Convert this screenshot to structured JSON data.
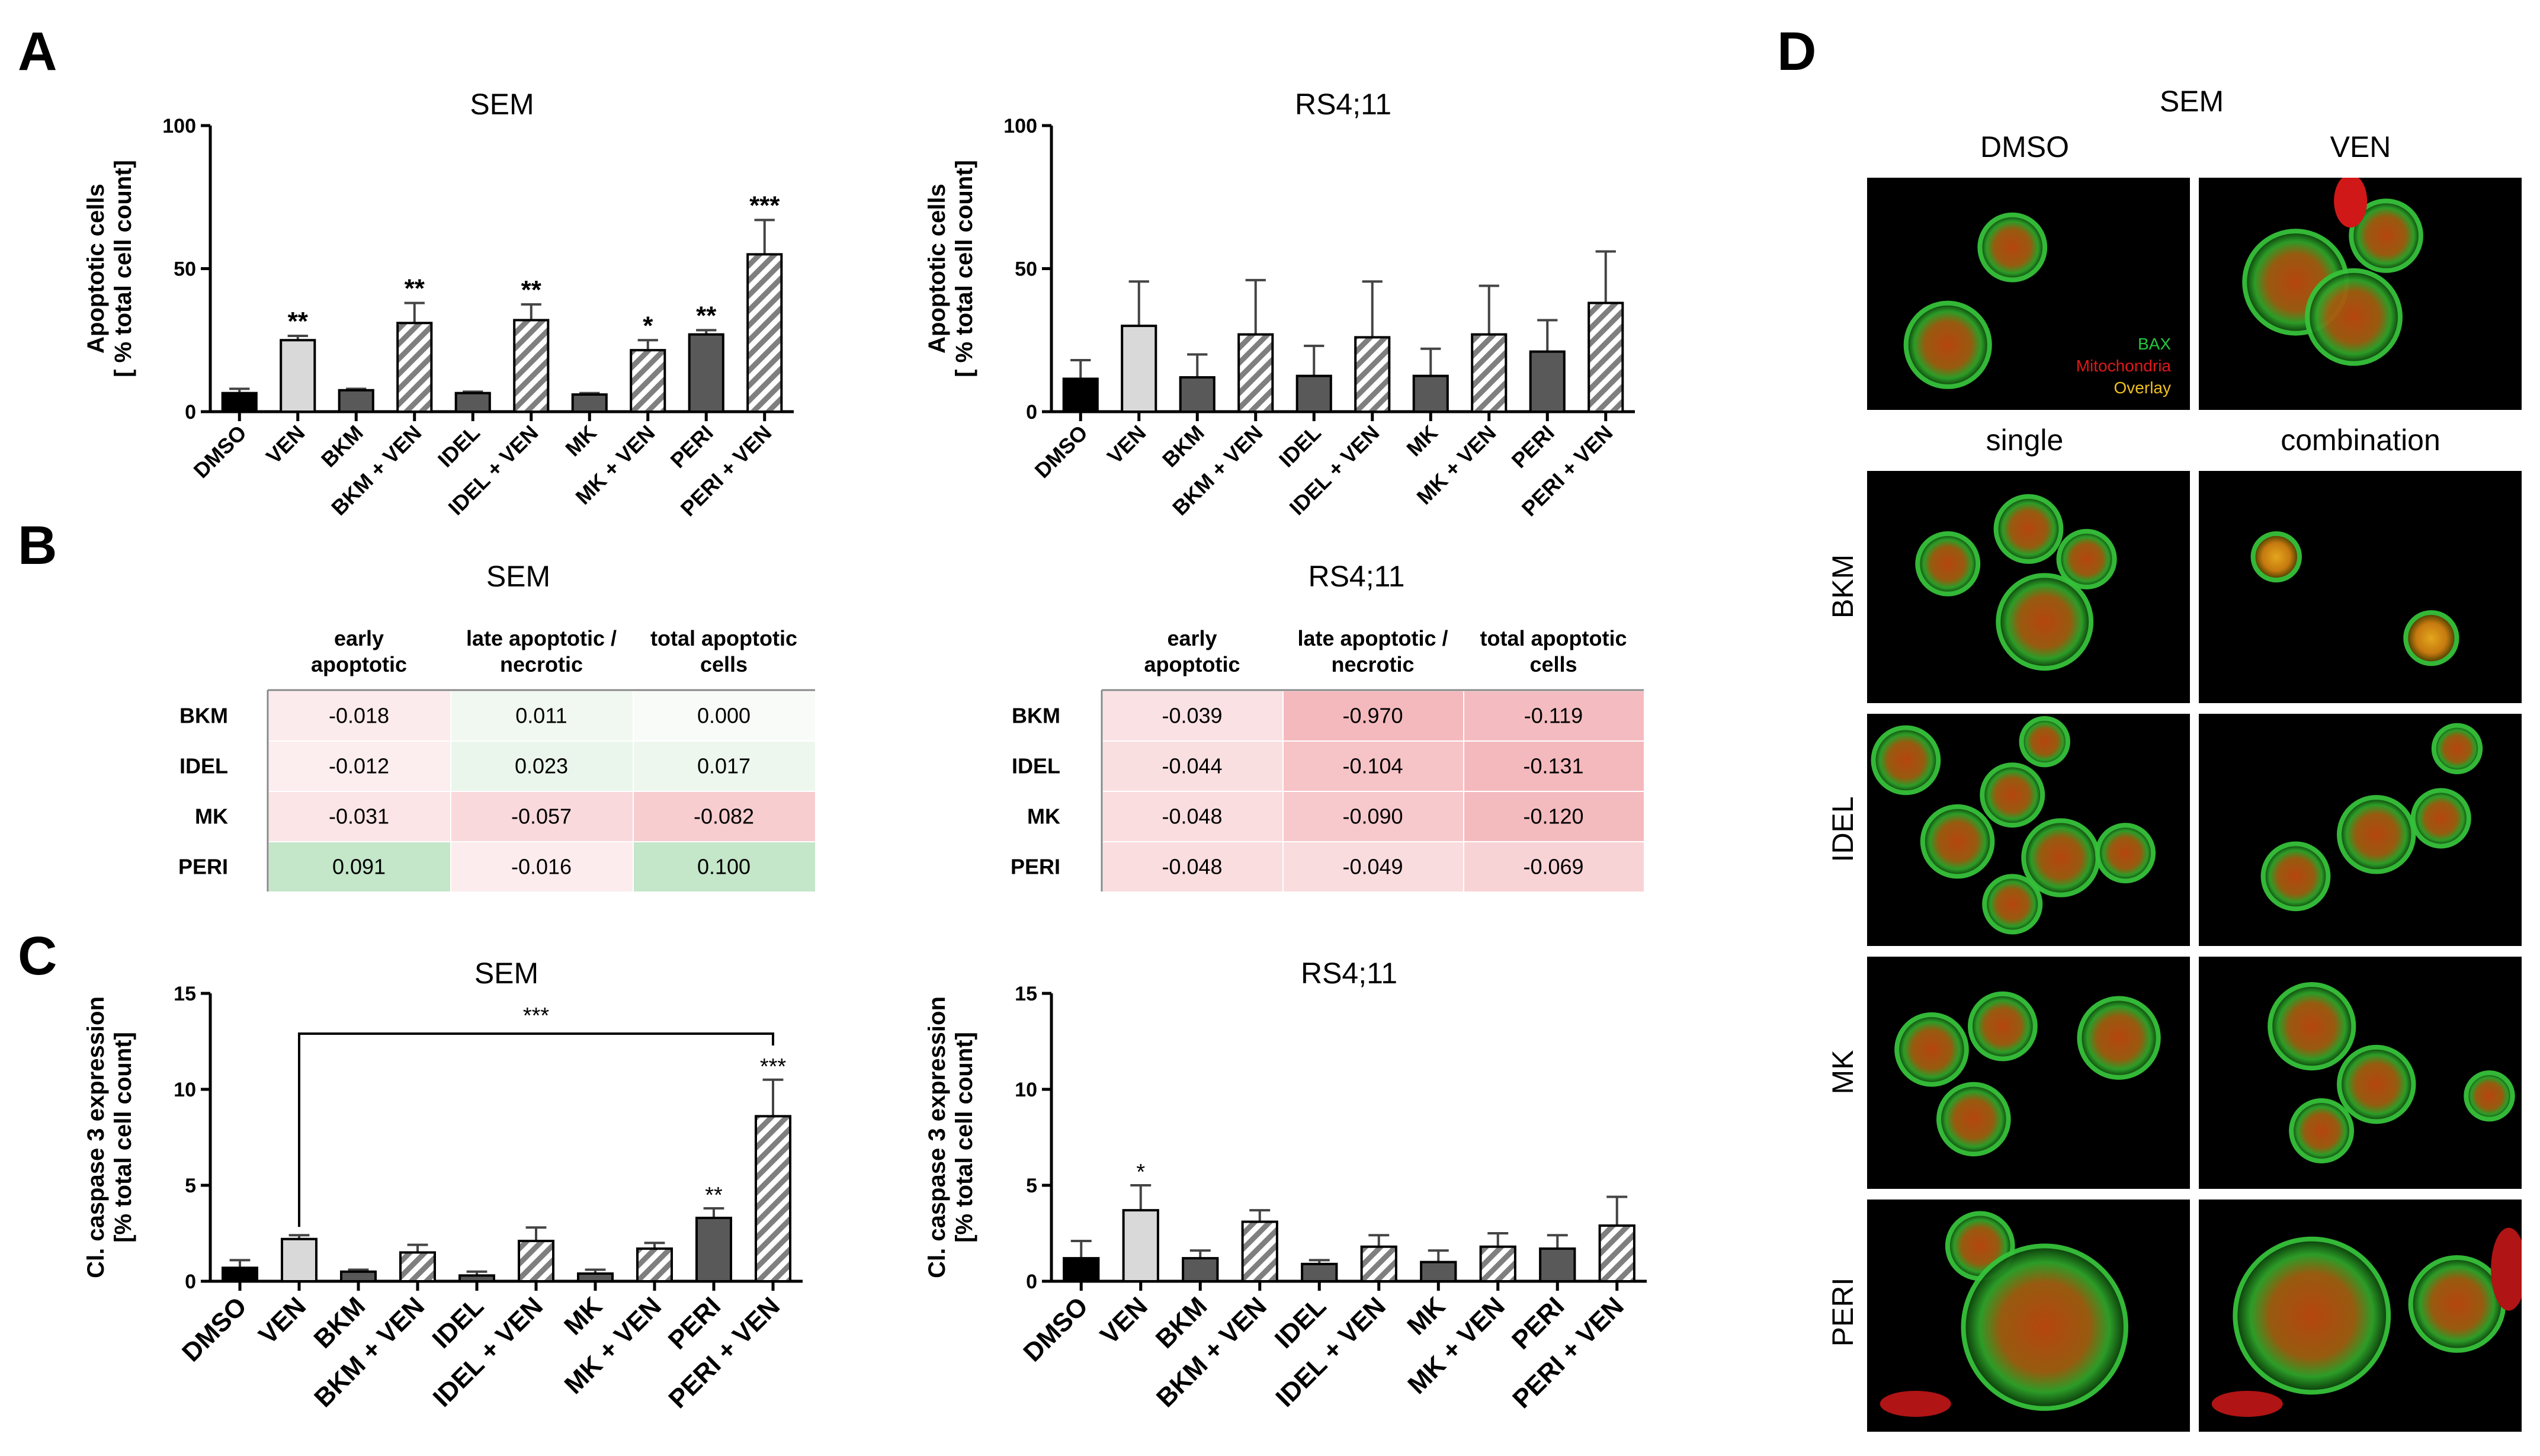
{
  "panel_labels": [
    "A",
    "B",
    "C",
    "D"
  ],
  "colors": {
    "black": "#000000",
    "light_gray": "#d9d9d9",
    "dark_gray": "#595959",
    "hatch": "#7f7f7f",
    "table_green": "#c4e6c9",
    "table_pink": "#f4b9bd"
  },
  "categories": [
    "DMSO",
    "VEN",
    "BKM",
    "BKM + VEN",
    "IDEL",
    "IDEL + VEN",
    "MK",
    "MK + VEN",
    "PERI",
    "PERI + VEN"
  ],
  "chart_data": [
    {
      "id": "A_SEM",
      "type": "bar",
      "title": "SEM",
      "ylabel_line1": "Apoptotic cells",
      "ylabel_line2": "[ % total cell count]",
      "ylim": [
        0,
        100
      ],
      "yticks": [
        "0",
        "50",
        "100"
      ],
      "categories": [
        "DMSO",
        "VEN",
        "BKM",
        "BKM + VEN",
        "IDEL",
        "IDEL + VEN",
        "MK",
        "MK + VEN",
        "PERI",
        "PERI + VEN"
      ],
      "values": [
        6.5,
        25,
        7.5,
        31,
        6.5,
        32,
        6,
        21.5,
        27,
        55
      ],
      "errors": [
        1.5,
        1.5,
        0.5,
        7,
        0.5,
        5.5,
        0.5,
        3.5,
        1.5,
        12
      ],
      "stars": [
        "",
        "**",
        "",
        "**",
        "",
        "**",
        "",
        "*",
        "**",
        "***"
      ]
    },
    {
      "id": "A_RS4",
      "type": "bar",
      "title": "RS4;11",
      "ylabel_line1": "Apoptotic cells",
      "ylabel_line2": "[ % total cell count]",
      "ylim": [
        0,
        100
      ],
      "yticks": [
        "0",
        "50",
        "100"
      ],
      "categories": [
        "DMSO",
        "VEN",
        "BKM",
        "BKM + VEN",
        "IDEL",
        "IDEL + VEN",
        "MK",
        "MK + VEN",
        "PERI",
        "PERI + VEN"
      ],
      "values": [
        11.5,
        30,
        12,
        27,
        12.5,
        26,
        12.5,
        27,
        21,
        38
      ],
      "errors": [
        6.5,
        15.5,
        8,
        19,
        10.5,
        19.5,
        9.5,
        17,
        11,
        18
      ],
      "stars": [
        "",
        "",
        "",
        "",
        "",
        "",
        "",
        "",
        "",
        ""
      ]
    },
    {
      "id": "C_SEM",
      "type": "bar",
      "title": "SEM",
      "ylabel_line1": "Cl. caspase 3 expression",
      "ylabel_line2": "[% total cell count]",
      "ylim": [
        0,
        15
      ],
      "yticks": [
        "0",
        "5",
        "10",
        "15"
      ],
      "categories": [
        "DMSO",
        "VEN",
        "BKM",
        "BKM + VEN",
        "IDEL",
        "IDEL + VEN",
        "MK",
        "MK + VEN",
        "PERI",
        "PERI + VEN"
      ],
      "values": [
        0.7,
        2.2,
        0.5,
        1.5,
        0.3,
        2.1,
        0.4,
        1.7,
        3.3,
        8.6
      ],
      "errors": [
        0.4,
        0.2,
        0.1,
        0.4,
        0.2,
        0.7,
        0.2,
        0.3,
        0.5,
        1.9
      ],
      "stars": [
        "",
        "",
        "",
        "",
        "",
        "",
        "",
        "",
        "**",
        "***"
      ],
      "bracket": {
        "from": "VEN",
        "to": "PERI + VEN",
        "label": "***"
      }
    },
    {
      "id": "C_RS4",
      "type": "bar",
      "title": "RS4;11",
      "ylabel_line1": "Cl. caspase 3 expression",
      "ylabel_line2": "[% total cell count]",
      "ylim": [
        0,
        15
      ],
      "yticks": [
        "0",
        "5",
        "10",
        "15"
      ],
      "categories": [
        "DMSO",
        "VEN",
        "BKM",
        "BKM + VEN",
        "IDEL",
        "IDEL + VEN",
        "MK",
        "MK + VEN",
        "PERI",
        "PERI + VEN"
      ],
      "values": [
        1.2,
        3.7,
        1.2,
        3.1,
        0.9,
        1.8,
        1.0,
        1.8,
        1.7,
        2.9
      ],
      "errors": [
        0.9,
        1.3,
        0.4,
        0.6,
        0.2,
        0.6,
        0.6,
        0.7,
        0.7,
        1.5
      ],
      "stars": [
        "",
        "*",
        "",
        "",
        "",
        "",
        "",
        "",
        "",
        ""
      ]
    },
    {
      "id": "B_SEM",
      "type": "table",
      "title": "SEM",
      "columns": [
        "early\napoptotic",
        "late apoptotic /\nnecrotic",
        "total apoptotic\ncells"
      ],
      "rows": [
        {
          "label": "BKM",
          "values": [
            "-0.018",
            "0.011",
            "0.000"
          ]
        },
        {
          "label": "IDEL",
          "values": [
            "-0.012",
            "0.023",
            "0.017"
          ]
        },
        {
          "label": "MK",
          "values": [
            "-0.031",
            "-0.057",
            "-0.082"
          ]
        },
        {
          "label": "PERI",
          "values": [
            "0.091",
            "-0.016",
            "0.100"
          ]
        }
      ]
    },
    {
      "id": "B_RS4",
      "type": "table",
      "title": "RS4;11",
      "columns": [
        "early\napoptotic",
        "late apoptotic /\nnecrotic",
        "total apoptotic\ncells"
      ],
      "rows": [
        {
          "label": "BKM",
          "values": [
            "-0.039",
            "-0.970",
            "-0.119"
          ]
        },
        {
          "label": "IDEL",
          "values": [
            "-0.044",
            "-0.104",
            "-0.131"
          ]
        },
        {
          "label": "MK",
          "values": [
            "-0.048",
            "-0.090",
            "-0.120"
          ]
        },
        {
          "label": "PERI",
          "values": [
            "-0.048",
            "-0.049",
            "-0.069"
          ]
        }
      ]
    }
  ],
  "panelD": {
    "title": "SEM",
    "top_columns": [
      "DMSO",
      "VEN"
    ],
    "bottom_columns": [
      "single",
      "combination"
    ],
    "rows": [
      "BKM",
      "IDEL",
      "MK",
      "PERI"
    ],
    "legend": [
      {
        "label": "BAX",
        "color": "#22c83c"
      },
      {
        "label": "Mitochondria",
        "color": "#e01818"
      },
      {
        "label": "Overlay",
        "color": "#f0c020"
      }
    ]
  }
}
